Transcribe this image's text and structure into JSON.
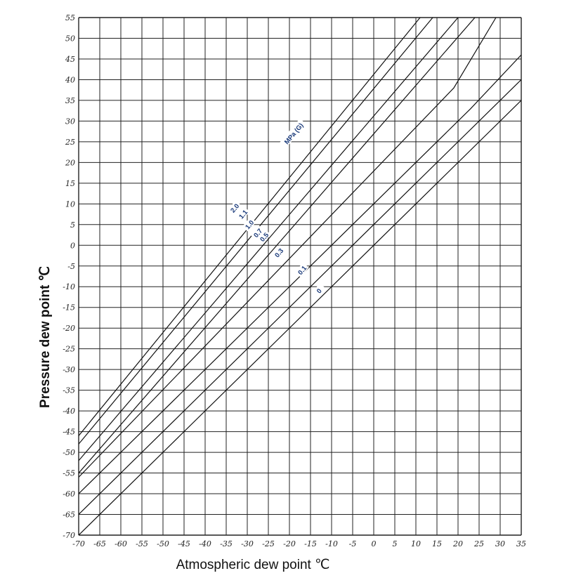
{
  "chart_data": {
    "type": "line",
    "title": "",
    "xlabel": "Atmospheric dew point ℃",
    "ylabel": "Pressure dew point  ℃",
    "xlim": [
      -70,
      35
    ],
    "ylim": [
      -70,
      55
    ],
    "x_ticks": [
      "-70",
      "-65",
      "-60",
      "-55",
      "-50",
      "-45",
      "-40",
      "-35",
      "-30",
      "-25",
      "-20",
      "-15",
      "-10",
      "-5",
      "0",
      "5",
      "10",
      "15",
      "20",
      "25",
      "30",
      "35"
    ],
    "y_ticks": [
      "55",
      "50",
      "45",
      "40",
      "35",
      "30",
      "25",
      "20",
      "15",
      "10",
      "5",
      "0",
      "-5",
      "-10",
      "-15",
      "-20",
      "-25",
      "-30",
      "-35",
      "-40",
      "-45",
      "-50",
      "-55",
      "-60",
      "-65",
      "-70"
    ],
    "grid": true,
    "legend": "none",
    "series_units_label": "MPa (G)",
    "series": [
      {
        "name": "0",
        "label_at": [
          -13,
          -11
        ],
        "points": [
          [
            -70,
            -70
          ],
          [
            35,
            35
          ]
        ]
      },
      {
        "name": "0.1",
        "label_at": [
          -17,
          -6
        ],
        "points": [
          [
            -70,
            -65
          ],
          [
            30,
            35
          ],
          [
            35,
            40
          ]
        ]
      },
      {
        "name": "0.3",
        "label_at": [
          -22.5,
          -1.8
        ],
        "points": [
          [
            -70,
            -60
          ],
          [
            23,
            33
          ],
          [
            35,
            46
          ]
        ]
      },
      {
        "name": "0.5",
        "label_at": [
          -26,
          2
        ],
        "points": [
          [
            -70,
            -56
          ],
          [
            19,
            38
          ],
          [
            29,
            55
          ]
        ]
      },
      {
        "name": "0.7",
        "label_at": [
          -27.5,
          3
        ],
        "points": [
          [
            -70,
            -55
          ],
          [
            24,
            55
          ]
        ]
      },
      {
        "name": "1.0",
        "label_at": [
          -29.5,
          5
        ],
        "points": [
          [
            -70,
            -52
          ],
          [
            20,
            55
          ]
        ]
      },
      {
        "name": "1.1",
        "label_at": [
          -31,
          7.5
        ],
        "points": [
          [
            -70,
            -48
          ],
          [
            14,
            55
          ]
        ]
      },
      {
        "name": "2.0",
        "label_at": [
          -33,
          9
        ],
        "points": [
          [
            -70,
            -46
          ],
          [
            11,
            55
          ]
        ]
      }
    ],
    "mpa_label_at": [
      -19,
      27
    ]
  }
}
